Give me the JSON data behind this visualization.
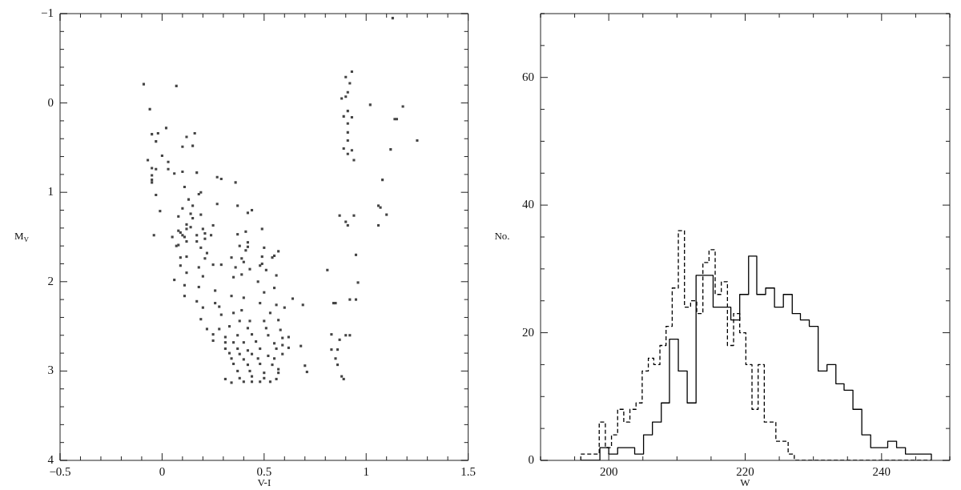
{
  "chart_data": [
    {
      "type": "scatter",
      "xlabel": "V-I",
      "ylabel": "M$_{V}$",
      "color": "#444444",
      "marker": "square",
      "xlim": [
        -0.5,
        1.5
      ],
      "ylim": [
        4,
        -1
      ],
      "xticks": [
        {
          "value": -0.5,
          "label": "−0.5"
        },
        {
          "value": -0.4,
          "label": null
        },
        {
          "value": -0.3,
          "label": null
        },
        {
          "value": -0.2,
          "label": null
        },
        {
          "value": -0.1,
          "label": null
        },
        0,
        {
          "value": 0.1,
          "label": null
        },
        {
          "value": 0.2,
          "label": null
        },
        {
          "value": 0.3,
          "label": null
        },
        {
          "value": 0.4,
          "label": null
        },
        0.5,
        {
          "value": 0.6,
          "label": null
        },
        {
          "value": 0.7,
          "label": null
        },
        {
          "value": 0.8,
          "label": null
        },
        {
          "value": 0.9,
          "label": null
        },
        1,
        {
          "value": 1.1,
          "label": null
        },
        {
          "value": 1.2,
          "label": null
        },
        {
          "value": 1.3,
          "label": null
        },
        {
          "value": 1.4,
          "label": null
        },
        1.5
      ],
      "yticks": [
        {
          "value": -1,
          "label": "−1"
        },
        {
          "value": -0.8,
          "label": null
        },
        {
          "value": -0.6,
          "label": null
        },
        {
          "value": -0.4,
          "label": null
        },
        {
          "value": -0.2,
          "label": null
        },
        0,
        {
          "value": 0.2,
          "label": null
        },
        {
          "value": 0.4,
          "label": null
        },
        {
          "value": 0.6,
          "label": null
        },
        {
          "value": 0.8,
          "label": null
        },
        1,
        {
          "value": 1.2,
          "label": null
        },
        {
          "value": 1.4,
          "label": null
        },
        {
          "value": 1.6,
          "label": null
        },
        {
          "value": 1.8,
          "label": null
        },
        2,
        {
          "value": 2.2,
          "label": null
        },
        {
          "value": 2.4,
          "label": null
        },
        {
          "value": 2.6,
          "label": null
        },
        {
          "value": 2.8,
          "label": null
        },
        3,
        {
          "value": 3.2,
          "label": null
        },
        {
          "value": 3.4,
          "label": null
        },
        {
          "value": 3.6,
          "label": null
        },
        {
          "value": 3.8,
          "label": null
        },
        4
      ],
      "x": [
        -0.09,
        0.07,
        -0.06,
        0.02,
        -0.05,
        -0.02,
        -0.03,
        0.12,
        0.16,
        0.15,
        0.1,
        0.0,
        -0.07,
        0.03,
        -0.05,
        -0.03,
        0.03,
        0.06,
        0.1,
        0.17,
        -0.05,
        -0.05,
        -0.05,
        0.27,
        0.29,
        0.36,
        0.11,
        0.19,
        0.18,
        -0.03,
        0.13,
        0.27,
        0.37,
        0.15,
        0.1,
        0.44,
        0.42,
        -0.01,
        0.14,
        0.19,
        0.08,
        0.15,
        0.12,
        0.25,
        0.14,
        0.49,
        0.08,
        0.12,
        0.2,
        0.09,
        0.1,
        0.21,
        -0.04,
        0.17,
        0.24,
        0.37,
        0.41,
        0.05,
        0.11,
        0.21,
        0.12,
        0.17,
        0.42,
        0.07,
        0.08,
        0.19,
        0.38,
        0.42,
        0.5,
        0.41,
        0.57,
        0.22,
        0.55,
        0.09,
        0.12,
        0.21,
        0.34,
        0.39,
        0.49,
        0.54,
        0.4,
        0.25,
        0.29,
        0.09,
        0.18,
        0.36,
        0.48,
        0.49,
        0.93,
        0.9,
        0.92,
        0.91,
        0.9,
        0.88,
        0.91,
        0.89,
        0.93,
        0.91,
        0.91,
        0.91,
        0.89,
        0.93,
        0.91,
        0.94,
        0.87,
        0.94,
        0.9,
        0.91,
        0.95,
        0.81,
        1.13,
        1.02,
        1.18,
        1.14,
        1.15,
        1.25,
        1.12,
        1.08,
        1.06,
        1.07,
        1.1,
        1.06,
        0.96,
        0.84,
        0.92,
        0.95,
        0.83,
        0.9,
        0.92,
        0.87,
        0.83,
        0.86,
        0.85,
        0.86,
        0.88,
        0.89,
        0.85,
        0.43,
        0.51,
        0.56,
        0.12,
        0.2,
        0.06,
        0.35,
        0.39,
        0.47,
        0.11,
        0.18,
        0.55,
        0.26,
        0.11,
        0.17,
        0.34,
        0.4,
        0.5,
        0.64,
        0.69,
        0.26,
        0.48,
        0.56,
        0.6,
        0.2,
        0.28,
        0.35,
        0.39,
        0.53,
        0.19,
        0.29,
        0.38,
        0.43,
        0.5,
        0.57,
        0.22,
        0.28,
        0.33,
        0.42,
        0.51,
        0.58,
        0.25,
        0.31,
        0.37,
        0.44,
        0.52,
        0.59,
        0.62,
        0.25,
        0.31,
        0.35,
        0.4,
        0.46,
        0.55,
        0.59,
        0.68,
        0.31,
        0.37,
        0.42,
        0.48,
        0.56,
        0.62,
        0.33,
        0.38,
        0.44,
        0.52,
        0.59,
        0.34,
        0.4,
        0.47,
        0.55,
        0.35,
        0.42,
        0.48,
        0.54,
        0.57,
        0.7,
        0.71,
        0.37,
        0.43,
        0.5,
        0.57,
        0.38,
        0.44,
        0.5,
        0.56,
        0.31,
        0.34,
        0.4,
        0.44,
        0.48,
        0.53
      ],
      "values": [
        -0.21,
        -0.19,
        0.07,
        0.28,
        0.35,
        0.34,
        0.43,
        0.38,
        0.34,
        0.48,
        0.49,
        0.59,
        0.64,
        0.66,
        0.73,
        0.74,
        0.74,
        0.79,
        0.77,
        0.78,
        0.81,
        0.86,
        0.89,
        0.83,
        0.85,
        0.89,
        0.94,
        1.0,
        1.02,
        1.03,
        1.08,
        1.13,
        1.15,
        1.15,
        1.18,
        1.2,
        1.23,
        1.21,
        1.24,
        1.25,
        1.27,
        1.29,
        1.36,
        1.37,
        1.39,
        1.41,
        1.43,
        1.41,
        1.41,
        1.45,
        1.48,
        1.46,
        1.48,
        1.48,
        1.48,
        1.47,
        1.44,
        1.5,
        1.5,
        1.52,
        1.55,
        1.55,
        1.56,
        1.6,
        1.59,
        1.62,
        1.6,
        1.61,
        1.62,
        1.65,
        1.66,
        1.68,
        1.71,
        1.73,
        1.72,
        1.74,
        1.73,
        1.74,
        1.72,
        1.73,
        1.78,
        1.81,
        1.81,
        1.82,
        1.84,
        1.84,
        1.82,
        1.8,
        -0.35,
        -0.29,
        -0.22,
        -0.12,
        -0.07,
        -0.05,
        0.09,
        0.15,
        0.16,
        0.23,
        0.33,
        0.42,
        0.51,
        0.53,
        0.57,
        0.64,
        1.26,
        1.26,
        1.33,
        1.37,
        1.7,
        1.87,
        -0.95,
        0.02,
        0.04,
        0.18,
        0.18,
        0.42,
        0.52,
        0.86,
        1.15,
        1.17,
        1.25,
        1.37,
        2.01,
        2.24,
        2.2,
        2.2,
        2.59,
        2.6,
        2.6,
        2.65,
        2.76,
        2.76,
        2.86,
        2.93,
        3.06,
        3.09,
        2.24,
        1.86,
        1.87,
        1.93,
        1.9,
        1.94,
        1.98,
        1.95,
        1.92,
        2.0,
        2.04,
        2.06,
        2.07,
        2.1,
        2.16,
        2.22,
        2.16,
        2.18,
        2.12,
        2.19,
        2.26,
        2.24,
        2.24,
        2.26,
        2.29,
        2.29,
        2.28,
        2.35,
        2.32,
        2.35,
        2.42,
        2.37,
        2.44,
        2.44,
        2.44,
        2.43,
        2.53,
        2.53,
        2.5,
        2.52,
        2.52,
        2.54,
        2.59,
        2.62,
        2.6,
        2.59,
        2.6,
        2.63,
        2.62,
        2.66,
        2.68,
        2.68,
        2.68,
        2.67,
        2.69,
        2.71,
        2.72,
        2.75,
        2.75,
        2.77,
        2.75,
        2.75,
        2.74,
        2.8,
        2.81,
        2.81,
        2.83,
        2.81,
        2.86,
        2.87,
        2.86,
        2.86,
        2.92,
        2.93,
        2.92,
        2.93,
        2.98,
        2.94,
        3.01,
        3.0,
        3.0,
        3.02,
        3.02,
        3.08,
        3.06,
        3.08,
        3.09,
        3.09,
        3.13,
        3.12,
        3.12,
        3.12,
        3.12
      ]
    },
    {
      "type": "histogram",
      "xlabel": "W",
      "ylabel": "No.",
      "xlim": [
        190,
        250
      ],
      "ylim": [
        0,
        70
      ],
      "xticks": [
        {
          "value": 190,
          "label": null
        },
        {
          "value": 195,
          "label": null
        },
        200,
        {
          "value": 205,
          "label": null
        },
        {
          "value": 210,
          "label": null
        },
        {
          "value": 215,
          "label": null
        },
        220,
        {
          "value": 225,
          "label": null
        },
        {
          "value": 230,
          "label": null
        },
        {
          "value": 235,
          "label": null
        },
        240,
        {
          "value": 245,
          "label": null
        },
        {
          "value": 250,
          "label": null
        }
      ],
      "yticks": [
        0,
        {
          "value": 5,
          "label": null
        },
        {
          "value": 10,
          "label": null
        },
        {
          "value": 15,
          "label": null
        },
        20,
        {
          "value": 25,
          "label": null
        },
        {
          "value": 30,
          "label": null
        },
        {
          "value": 35,
          "label": null
        },
        40,
        {
          "value": 45,
          "label": null
        },
        {
          "value": 50,
          "label": null
        },
        {
          "value": 55,
          "label": null
        },
        60,
        {
          "value": 65,
          "label": null
        },
        {
          "value": 70,
          "label": null
        }
      ],
      "bins": [
        195.9,
        196.8,
        197.7,
        198.6,
        198.7,
        199.5,
        200.0,
        200.4,
        201.3,
        202.2,
        202.5,
        203.1,
        203.8,
        204.0,
        204.9,
        205.1,
        205.8,
        206.4,
        206.6,
        207.5,
        207.7,
        208.4,
        208.9,
        209.3,
        210.2,
        211.1,
        211.5,
        212.0,
        212.8,
        212.9,
        213.8,
        214.1,
        214.7,
        215.3,
        215.6,
        216.5,
        216.6,
        217.4,
        217.9,
        218.3,
        219.2,
        220.1,
        220.5,
        221.0,
        221.7,
        221.9,
        222.8,
        223.0,
        223.7,
        224.3,
        224.5,
        225.4,
        225.6,
        226.3,
        226.9,
        227.2,
        228.1,
        229.4,
        230.7,
        232.0,
        233.3,
        234.5,
        235.8,
        237.1,
        238.4,
        239.7,
        240.9,
        242.2,
        243.5,
        244.8,
        246.1,
        247.3
      ],
      "series": [
        {
          "color": "#000000",
          "line_style": "solid",
          "values": [
            0,
            0,
            0,
            0,
            2,
            2,
            1,
            1,
            2,
            2,
            2,
            2,
            1,
            1,
            1,
            4,
            4,
            6,
            6,
            6,
            9,
            9,
            19,
            19,
            14,
            14,
            9,
            9,
            29,
            29,
            29,
            29,
            29,
            24,
            24,
            24,
            24,
            24,
            22,
            22,
            26,
            26,
            32,
            32,
            26,
            26,
            26,
            27,
            27,
            24,
            24,
            24,
            26,
            26,
            23,
            23,
            22,
            21,
            14,
            15,
            12,
            11,
            8,
            4,
            2,
            2,
            3,
            2,
            1,
            1,
            1
          ]
        },
        {
          "color": "#000000",
          "line_style": "dashed",
          "values": [
            1,
            1,
            1,
            6,
            6,
            2,
            2,
            4,
            8,
            6,
            6,
            8,
            8,
            9,
            14,
            14,
            16,
            16,
            15,
            18,
            18,
            21,
            21,
            27,
            36,
            24,
            24,
            25,
            25,
            23,
            31,
            31,
            33,
            33,
            26,
            28,
            28,
            18,
            18,
            23,
            20,
            15,
            15,
            8,
            8,
            15,
            6,
            6,
            6,
            6,
            3,
            3,
            3,
            1,
            1,
            0,
            0,
            0,
            0,
            0,
            0,
            0,
            0,
            0,
            0,
            0,
            0,
            0,
            0,
            0,
            0
          ]
        }
      ]
    }
  ]
}
